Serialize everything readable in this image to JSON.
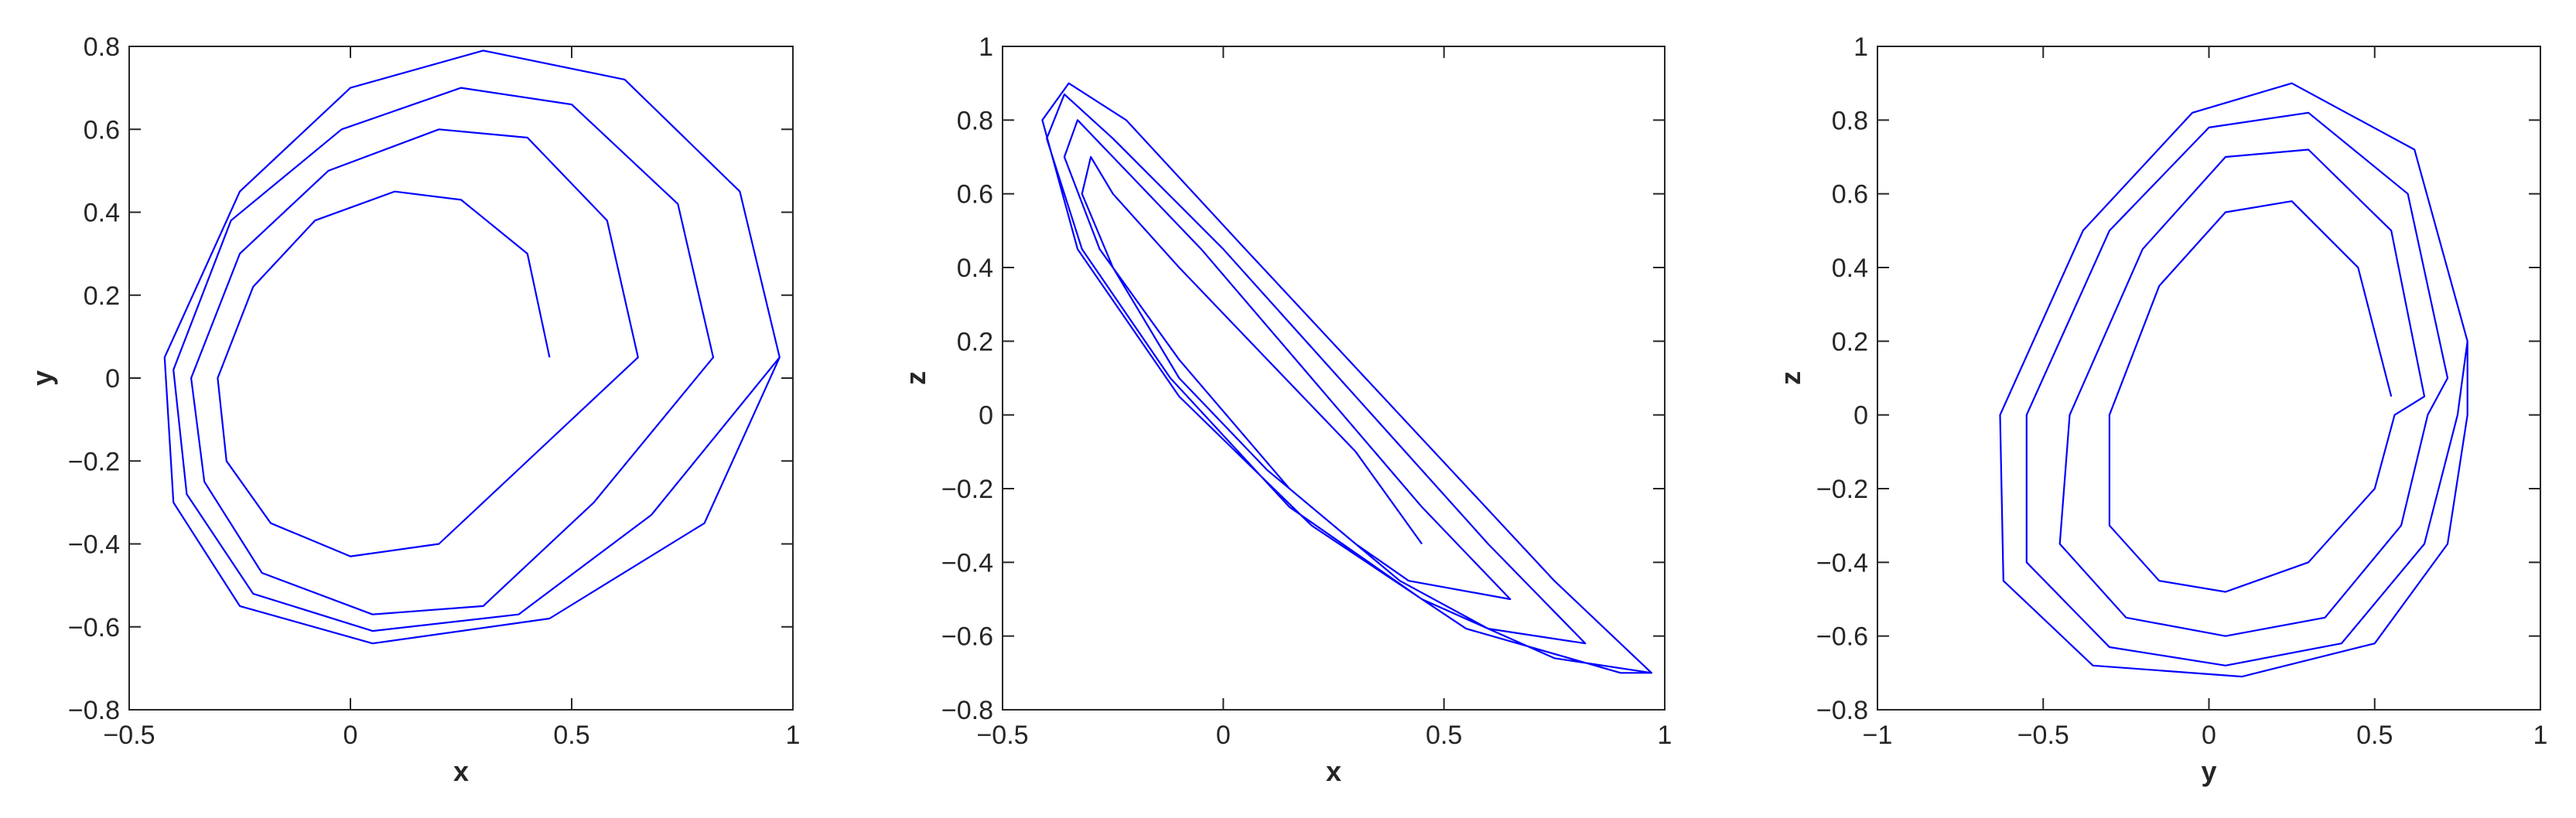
{
  "chart_data": [
    {
      "type": "line",
      "xlabel": "x",
      "ylabel": "y",
      "color": "#0000ff",
      "xlim": [
        -0.5,
        1
      ],
      "ylim": [
        -0.8,
        0.8
      ],
      "xticks": [
        {
          "value": -0.5,
          "label": "−0.5"
        },
        0,
        0.5,
        1
      ],
      "yticks": [
        {
          "value": -0.8,
          "label": "−0.8"
        },
        {
          "value": -0.6,
          "label": "−0.6"
        },
        {
          "value": -0.4,
          "label": "−0.4"
        },
        {
          "value": -0.2,
          "label": "−0.2"
        },
        0,
        0.2,
        0.4,
        0.6,
        0.8
      ],
      "x": [
        0.45,
        0.4,
        0.25,
        0.1,
        -0.08,
        -0.22,
        -0.3,
        -0.28,
        -0.18,
        0,
        0.2,
        0.38,
        0.65,
        0.58,
        0.4,
        0.2,
        -0.05,
        -0.25,
        -0.36,
        -0.33,
        -0.2,
        0.05,
        0.3,
        0.55,
        0.82,
        0.74,
        0.5,
        0.25,
        -0.02,
        -0.27,
        -0.4,
        -0.37,
        -0.22,
        0.05,
        0.38,
        0.68,
        0.97,
        0.88,
        0.62,
        0.3,
        0,
        -0.25,
        -0.42,
        -0.4,
        -0.25,
        0.05,
        0.45,
        0.8,
        0.97
      ],
      "values": [
        0.05,
        0.3,
        0.43,
        0.45,
        0.38,
        0.22,
        0,
        -0.2,
        -0.35,
        -0.43,
        -0.4,
        -0.22,
        0.05,
        0.38,
        0.58,
        0.6,
        0.5,
        0.3,
        0,
        -0.25,
        -0.47,
        -0.57,
        -0.55,
        -0.3,
        0.05,
        0.42,
        0.66,
        0.7,
        0.6,
        0.38,
        0.02,
        -0.28,
        -0.52,
        -0.61,
        -0.57,
        -0.33,
        0.05,
        0.45,
        0.72,
        0.79,
        0.7,
        0.45,
        0.05,
        -0.3,
        -0.55,
        -0.64,
        -0.58,
        -0.35,
        0.05
      ]
    },
    {
      "type": "line",
      "xlabel": "x",
      "ylabel": "z",
      "color": "#0000ff",
      "xlim": [
        -0.5,
        1
      ],
      "ylim": [
        -0.8,
        1
      ],
      "xticks": [
        {
          "value": -0.5,
          "label": "−0.5"
        },
        0,
        0.5,
        1
      ],
      "yticks": [
        {
          "value": -0.8,
          "label": "−0.8"
        },
        {
          "value": -0.6,
          "label": "−0.6"
        },
        {
          "value": -0.4,
          "label": "−0.4"
        },
        {
          "value": -0.2,
          "label": "−0.2"
        },
        0,
        0.2,
        0.4,
        0.6,
        0.8,
        1
      ],
      "x": [
        0.45,
        0.3,
        0.1,
        -0.1,
        -0.25,
        -0.3,
        -0.32,
        -0.25,
        -0.1,
        0.1,
        0.3,
        0.42,
        0.65,
        0.45,
        0.2,
        -0.05,
        -0.25,
        -0.33,
        -0.36,
        -0.28,
        -0.1,
        0.15,
        0.4,
        0.6,
        0.82,
        0.6,
        0.3,
        0,
        -0.25,
        -0.36,
        -0.4,
        -0.32,
        -0.12,
        0.15,
        0.45,
        0.75,
        0.97,
        0.75,
        0.4,
        0.05,
        -0.22,
        -0.35,
        -0.41,
        -0.33,
        -0.1,
        0.2,
        0.55,
        0.9,
        0.97
      ],
      "values": [
        -0.35,
        -0.1,
        0.15,
        0.4,
        0.6,
        0.7,
        0.6,
        0.4,
        0.1,
        -0.15,
        -0.35,
        -0.45,
        -0.5,
        -0.25,
        0.1,
        0.45,
        0.7,
        0.8,
        0.7,
        0.45,
        0.15,
        -0.2,
        -0.45,
        -0.58,
        -0.62,
        -0.35,
        0.05,
        0.45,
        0.75,
        0.87,
        0.75,
        0.45,
        0.1,
        -0.25,
        -0.5,
        -0.66,
        -0.7,
        -0.45,
        0,
        0.45,
        0.8,
        0.9,
        0.8,
        0.45,
        0.05,
        -0.3,
        -0.58,
        -0.7,
        -0.7
      ]
    },
    {
      "type": "line",
      "xlabel": "y",
      "ylabel": "z",
      "color": "#0000ff",
      "xlim": [
        -1,
        1
      ],
      "ylim": [
        -0.8,
        1
      ],
      "xticks": [
        {
          "value": -1,
          "label": "−1"
        },
        {
          "value": -0.5,
          "label": "−0.5"
        },
        0,
        0.5,
        1
      ],
      "yticks": [
        {
          "value": -0.8,
          "label": "−0.8"
        },
        {
          "value": -0.6,
          "label": "−0.6"
        },
        {
          "value": -0.4,
          "label": "−0.4"
        },
        {
          "value": -0.2,
          "label": "−0.2"
        },
        0,
        0.2,
        0.4,
        0.6,
        0.8,
        1
      ],
      "x": [
        0.55,
        0.45,
        0.25,
        0.05,
        -0.15,
        -0.3,
        -0.3,
        -0.15,
        0.05,
        0.3,
        0.5,
        0.56,
        0.65,
        0.55,
        0.3,
        0.05,
        -0.2,
        -0.42,
        -0.45,
        -0.25,
        0.05,
        0.35,
        0.58,
        0.66,
        0.72,
        0.6,
        0.3,
        0,
        -0.3,
        -0.55,
        -0.55,
        -0.3,
        0.05,
        0.4,
        0.65,
        0.75,
        0.78,
        0.62,
        0.25,
        -0.05,
        -0.38,
        -0.63,
        -0.62,
        -0.35,
        0.1,
        0.5,
        0.72,
        0.78,
        0.78
      ],
      "values": [
        0.05,
        0.4,
        0.58,
        0.55,
        0.35,
        0,
        -0.3,
        -0.45,
        -0.48,
        -0.4,
        -0.2,
        0,
        0.05,
        0.5,
        0.72,
        0.7,
        0.45,
        0,
        -0.35,
        -0.55,
        -0.6,
        -0.55,
        -0.3,
        0,
        0.1,
        0.6,
        0.82,
        0.78,
        0.5,
        0,
        -0.4,
        -0.63,
        -0.68,
        -0.62,
        -0.35,
        0,
        0.2,
        0.72,
        0.9,
        0.82,
        0.5,
        0,
        -0.45,
        -0.68,
        -0.71,
        -0.62,
        -0.35,
        0,
        0.2
      ]
    }
  ]
}
